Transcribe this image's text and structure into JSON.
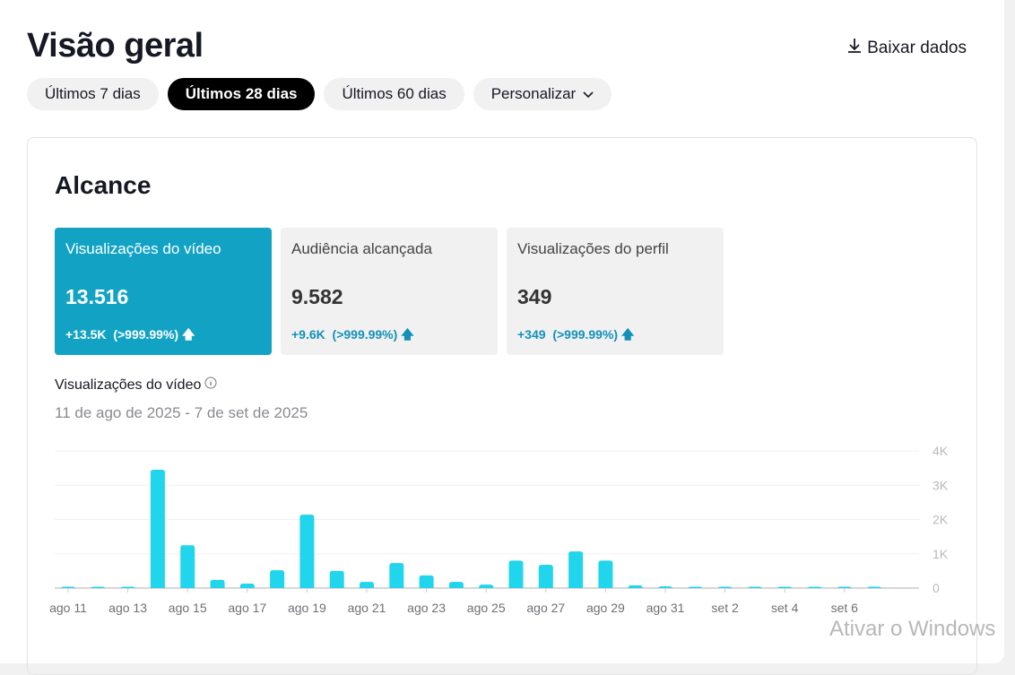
{
  "header": {
    "title": "Visão geral",
    "download_label": "Baixar dados"
  },
  "filters": [
    {
      "label": "Últimos 7 dias"
    },
    {
      "label": "Últimos 28 dias",
      "active": true
    },
    {
      "label": "Últimos 60 dias"
    },
    {
      "label": "Personalizar"
    }
  ],
  "section": {
    "title": "Alcance"
  },
  "metrics": [
    {
      "label": "Visualizações do vídeo",
      "value": "13.516",
      "change": "+13.5K  (>999.99%)"
    },
    {
      "label": "Audiência alcançada",
      "value": "9.582",
      "change": "+9.6K  (>999.99%)"
    },
    {
      "label": "Visualizações do perfil",
      "value": "349",
      "change": "+349  (>999.99%)"
    }
  ],
  "chart_title": "Visualizações do vídeo",
  "chart_range": "11 de ago de 2025 - 7 de set de 2025",
  "watermark": "Ativar o Windows",
  "colors": {
    "accent": "#12a3c4",
    "bar": "#20d5ec"
  },
  "chart_data": {
    "type": "bar",
    "title": "Visualizações do vídeo",
    "categories": [
      "ago 11",
      "ago 12",
      "ago 13",
      "ago 14",
      "ago 15",
      "ago 16",
      "ago 17",
      "ago 18",
      "ago 19",
      "ago 20",
      "ago 21",
      "ago 22",
      "ago 23",
      "ago 24",
      "ago 25",
      "ago 26",
      "ago 27",
      "ago 28",
      "ago 29",
      "ago 30",
      "ago 31",
      "set 1",
      "set 2",
      "set 3",
      "set 4",
      "set 5",
      "set 6",
      "set 7"
    ],
    "values": [
      0,
      0,
      0,
      3450,
      1250,
      240,
      130,
      520,
      2140,
      500,
      180,
      730,
      370,
      180,
      100,
      800,
      680,
      1070,
      800,
      80,
      50,
      15,
      15,
      10,
      10,
      15,
      10,
      10
    ],
    "yticks": [
      "0",
      "1K",
      "2K",
      "3K",
      "4K"
    ],
    "ylim": [
      0,
      4000
    ],
    "xtick_labels": [
      "ago 11",
      "ago 13",
      "ago 15",
      "ago 17",
      "ago 19",
      "ago 21",
      "ago 23",
      "ago 25",
      "ago 27",
      "ago 29",
      "ago 31",
      "set 2",
      "set 4",
      "set 6"
    ],
    "grid": true
  }
}
